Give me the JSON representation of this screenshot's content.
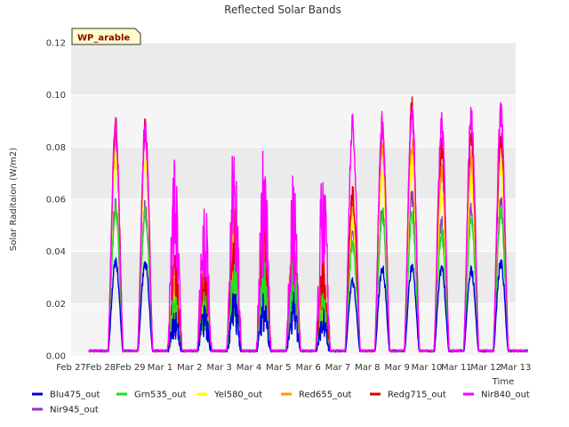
{
  "chart_data": {
    "type": "line",
    "title": "Reflected Solar Bands",
    "xlabel": "Time",
    "ylabel": "Solar Raditaion (W/m2)",
    "badge": "WP_arable",
    "x_ticks": [
      "Feb 27",
      "Feb 28",
      "Feb 29",
      "Mar 1",
      "Mar 2",
      "Mar 3",
      "Mar 4",
      "Mar 5",
      "Mar 6",
      "Mar 7",
      "Mar 8",
      "Mar 9",
      "Mar 10",
      "Mar 11",
      "Mar 12",
      "Mar 13"
    ],
    "y_ticks": [
      "0.00",
      "0.02",
      "0.04",
      "0.06",
      "0.08",
      "0.10",
      "0.12"
    ],
    "ylim": [
      0,
      0.12
    ],
    "xlim": [
      "2024-02-27",
      "2024-03-13"
    ],
    "grid": true,
    "legend_position": "bottom",
    "colors": {
      "Blu475_out": "#0000dd",
      "Grn535_out": "#22dd22",
      "Yel580_out": "#ffff00",
      "Red655_out": "#ff9900",
      "Redg715_out": "#dd0000",
      "Nir840_out": "#ff00ff",
      "Nir945_out": "#9933cc"
    },
    "daily_peaks": {
      "days": [
        "2024-02-28",
        "2024-02-29",
        "2024-03-01",
        "2024-03-02",
        "2024-03-03",
        "2024-03-04",
        "2024-03-05",
        "2024-03-06",
        "2024-03-07",
        "2024-03-08",
        "2024-03-09",
        "2024-03-10",
        "2024-03-11",
        "2024-03-12"
      ],
      "series": [
        {
          "name": "Blu475_out",
          "values": [
            0.038,
            0.038,
            0.018,
            0.02,
            0.027,
            0.025,
            0.025,
            0.018,
            0.03,
            0.036,
            0.036,
            0.036,
            0.035,
            0.038
          ]
        },
        {
          "name": "Grn535_out",
          "values": [
            0.06,
            0.058,
            0.025,
            0.025,
            0.04,
            0.04,
            0.04,
            0.025,
            0.045,
            0.057,
            0.057,
            0.05,
            0.055,
            0.058
          ]
        },
        {
          "name": "Yel580_out",
          "values": [
            0.08,
            0.078,
            0.03,
            0.03,
            0.05,
            0.05,
            0.05,
            0.03,
            0.055,
            0.075,
            0.078,
            0.065,
            0.07,
            0.078
          ]
        },
        {
          "name": "Red655_out",
          "values": [
            0.09,
            0.088,
            0.035,
            0.035,
            0.06,
            0.06,
            0.055,
            0.035,
            0.06,
            0.085,
            0.085,
            0.075,
            0.08,
            0.085
          ]
        },
        {
          "name": "Redg715_out",
          "values": [
            0.093,
            0.092,
            0.04,
            0.045,
            0.065,
            0.07,
            0.06,
            0.04,
            0.065,
            0.093,
            0.101,
            0.085,
            0.09,
            0.09
          ]
        },
        {
          "name": "Nir840_out",
          "values": [
            0.092,
            0.091,
            0.078,
            0.066,
            0.087,
            0.086,
            0.071,
            0.082,
            0.094,
            0.094,
            0.098,
            0.094,
            0.097,
            0.098
          ]
        },
        {
          "name": "Nir945_out",
          "values": [
            0.061,
            0.06,
            0.02,
            0.025,
            0.045,
            0.045,
            0.045,
            0.03,
            0.05,
            0.059,
            0.065,
            0.055,
            0.06,
            0.063
          ]
        }
      ]
    }
  }
}
